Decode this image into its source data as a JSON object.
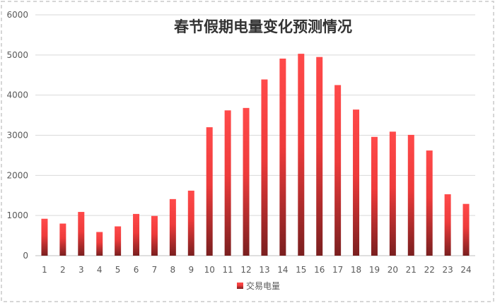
{
  "chart_data": {
    "type": "bar",
    "title": "春节假期电量变化预测情况",
    "xlabel": "",
    "ylabel": "",
    "categories": [
      "1",
      "2",
      "3",
      "4",
      "5",
      "6",
      "7",
      "8",
      "9",
      "10",
      "11",
      "12",
      "13",
      "14",
      "15",
      "16",
      "17",
      "18",
      "19",
      "20",
      "21",
      "22",
      "23",
      "24"
    ],
    "series": [
      {
        "name": "交易电量",
        "values": [
          920,
          800,
          1090,
          590,
          730,
          1040,
          990,
          1410,
          1620,
          3200,
          3620,
          3680,
          4390,
          4910,
          5030,
          4950,
          4250,
          3640,
          2960,
          3090,
          3010,
          2620,
          1530,
          1290
        ]
      }
    ],
    "ylim": [
      0,
      6000
    ],
    "yticks": [
      0,
      1000,
      2000,
      3000,
      4000,
      5000,
      6000
    ],
    "grid": true,
    "legend_position": "bottom",
    "colors": {
      "bar_top": "#ff4a4a",
      "bar_bottom": "#7a1f1f",
      "grid": "#d9d9d9",
      "axis": "#bfbfbf",
      "frame": "#c8c8c8"
    }
  }
}
